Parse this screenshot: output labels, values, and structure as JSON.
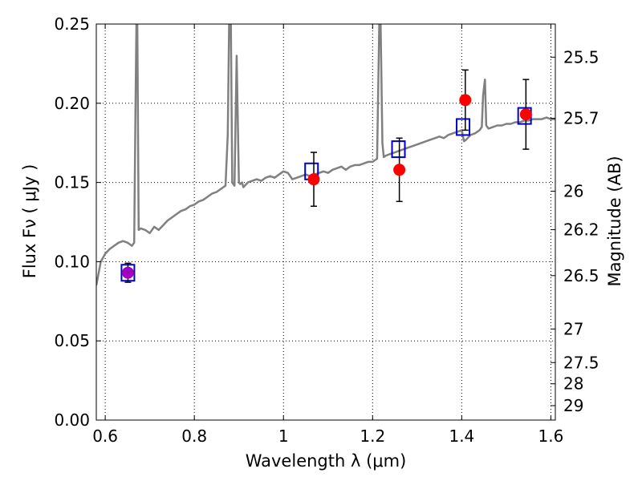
{
  "chart_data": {
    "type": "scatter",
    "title": "",
    "xlabel": "Wavelength  λ (μm)",
    "ylabel": "Flux  Fν ( μJy )",
    "ylabel_right": "Magnitude (AB)",
    "xlim": [
      0.58,
      1.61
    ],
    "ylim": [
      0,
      0.25
    ],
    "grid": true,
    "x_ticks": [
      0.6,
      0.8,
      1.0,
      1.2,
      1.4,
      1.6
    ],
    "x_tick_labels": [
      "0.6",
      "0.8",
      "1",
      "1.2",
      "1.4",
      "1.6"
    ],
    "y_ticks": [
      0,
      0.05,
      0.1,
      0.15,
      0.2,
      0.25
    ],
    "y_tick_labels": [
      "0.00",
      "0.05",
      "0.10",
      "0.15",
      "0.20",
      "0.25"
    ],
    "right_ticks": [
      {
        "label": "25.5",
        "flux": 0.2291
      },
      {
        "label": "25.7",
        "flux": 0.1905
      },
      {
        "label": "26",
        "flux": 0.1445
      },
      {
        "label": "26.2",
        "flux": 0.1202
      },
      {
        "label": "26.5",
        "flux": 0.0912
      },
      {
        "label": "27",
        "flux": 0.0575
      },
      {
        "label": "27.5",
        "flux": 0.0363
      },
      {
        "label": "28",
        "flux": 0.0229
      },
      {
        "label": "29",
        "flux": 0.0091
      }
    ],
    "series": [
      {
        "type": "line",
        "color": "#808080",
        "x": [
          0.58,
          0.59,
          0.6,
          0.61,
          0.62,
          0.63,
          0.64,
          0.65,
          0.66,
          0.665,
          0.668,
          0.67,
          0.672,
          0.675,
          0.68,
          0.69,
          0.7,
          0.71,
          0.72,
          0.73,
          0.74,
          0.75,
          0.76,
          0.77,
          0.78,
          0.79,
          0.8,
          0.81,
          0.82,
          0.83,
          0.84,
          0.85,
          0.86,
          0.87,
          0.875,
          0.878,
          0.882,
          0.885,
          0.89,
          0.895,
          0.9,
          0.903,
          0.907,
          0.91,
          0.92,
          0.93,
          0.94,
          0.95,
          0.96,
          0.97,
          0.98,
          0.99,
          1.0,
          1.01,
          1.02,
          1.03,
          1.04,
          1.05,
          1.06,
          1.07,
          1.08,
          1.09,
          1.1,
          1.11,
          1.12,
          1.13,
          1.14,
          1.15,
          1.16,
          1.17,
          1.18,
          1.19,
          1.2,
          1.205,
          1.21,
          1.215,
          1.218,
          1.222,
          1.225,
          1.23,
          1.24,
          1.25,
          1.26,
          1.27,
          1.28,
          1.29,
          1.3,
          1.31,
          1.32,
          1.33,
          1.34,
          1.35,
          1.36,
          1.37,
          1.38,
          1.39,
          1.4,
          1.405,
          1.41,
          1.42,
          1.43,
          1.44,
          1.445,
          1.448,
          1.452,
          1.455,
          1.46,
          1.47,
          1.48,
          1.49,
          1.5,
          1.51,
          1.52,
          1.53,
          1.54,
          1.55,
          1.56,
          1.57,
          1.58,
          1.59,
          1.6,
          1.61
        ],
        "values": [
          0.085,
          0.1,
          0.105,
          0.108,
          0.11,
          0.112,
          0.113,
          0.112,
          0.11,
          0.112,
          0.2,
          0.25,
          0.25,
          0.12,
          0.121,
          0.12,
          0.118,
          0.122,
          0.12,
          0.123,
          0.126,
          0.128,
          0.13,
          0.132,
          0.133,
          0.135,
          0.136,
          0.138,
          0.139,
          0.141,
          0.143,
          0.144,
          0.146,
          0.148,
          0.18,
          0.25,
          0.25,
          0.15,
          0.148,
          0.23,
          0.15,
          0.149,
          0.15,
          0.147,
          0.15,
          0.151,
          0.152,
          0.151,
          0.153,
          0.154,
          0.153,
          0.155,
          0.157,
          0.156,
          0.152,
          0.153,
          0.154,
          0.155,
          0.154,
          0.155,
          0.156,
          0.157,
          0.156,
          0.158,
          0.159,
          0.16,
          0.158,
          0.16,
          0.161,
          0.161,
          0.162,
          0.163,
          0.163,
          0.164,
          0.165,
          0.25,
          0.25,
          0.175,
          0.166,
          0.167,
          0.168,
          0.169,
          0.17,
          0.171,
          0.172,
          0.173,
          0.174,
          0.175,
          0.176,
          0.177,
          0.178,
          0.179,
          0.178,
          0.18,
          0.181,
          0.182,
          0.183,
          0.176,
          0.177,
          0.18,
          0.181,
          0.183,
          0.185,
          0.205,
          0.215,
          0.186,
          0.184,
          0.185,
          0.186,
          0.186,
          0.187,
          0.187,
          0.188,
          0.188,
          0.189,
          0.189,
          0.19,
          0.19,
          0.19,
          0.191,
          0.19,
          0.19
        ]
      },
      {
        "type": "scatter",
        "marker": "open-square",
        "color": "#0000cc",
        "x": [
          0.651,
          1.063,
          1.258,
          1.403,
          1.541
        ],
        "values": [
          0.093,
          0.157,
          0.171,
          0.185,
          0.192
        ]
      },
      {
        "type": "scatter",
        "marker": "filled-circle",
        "color": "#ff0000",
        "x": [
          0.651,
          1.068,
          1.26,
          1.408,
          1.544
        ],
        "values": [
          0.093,
          0.152,
          0.158,
          0.202,
          0.193
        ],
        "err": [
          0.006,
          0.017,
          0.02,
          0.019,
          0.022
        ]
      }
    ]
  }
}
